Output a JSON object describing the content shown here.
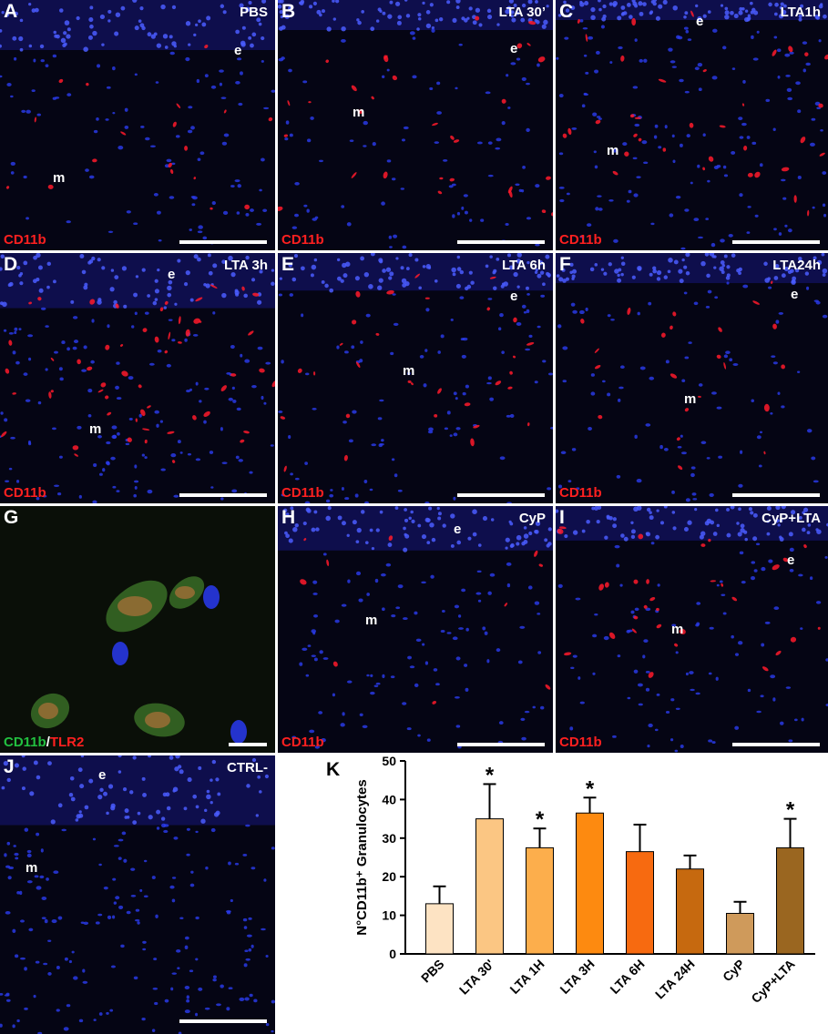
{
  "panels": [
    {
      "letter": "A",
      "condition": "PBS",
      "marker": "CD11b",
      "marker_color": "#ff2020",
      "labels": {
        "e": "e",
        "m": "m"
      }
    },
    {
      "letter": "B",
      "condition": "LTA 30’",
      "marker": "CD11b",
      "marker_color": "#ff2020",
      "labels": {
        "e": "e",
        "m": "m"
      }
    },
    {
      "letter": "C",
      "condition": "LTA1h",
      "marker": "CD11b",
      "marker_color": "#ff2020",
      "labels": {
        "e": "e",
        "m": "m"
      }
    },
    {
      "letter": "D",
      "condition": "LTA 3h",
      "marker": "CD11b",
      "marker_color": "#ff2020",
      "labels": {
        "e": "e",
        "m": "m"
      }
    },
    {
      "letter": "E",
      "condition": "LTA 6h",
      "marker": "CD11b",
      "marker_color": "#ff2020",
      "labels": {
        "e": "e",
        "m": "m"
      }
    },
    {
      "letter": "F",
      "condition": "LTA24h",
      "marker": "CD11b",
      "marker_color": "#ff2020",
      "labels": {
        "e": "e",
        "m": "m"
      }
    },
    {
      "letter": "G",
      "condition": "",
      "marker_parts": [
        "CD11b",
        "/",
        "TLR2"
      ],
      "marker_colors": [
        "#22c040",
        "#ffffff",
        "#ff2020"
      ]
    },
    {
      "letter": "H",
      "condition": "CyP",
      "marker": "CD11b",
      "marker_color": "#ff2020",
      "labels": {
        "e": "e",
        "m": "m"
      }
    },
    {
      "letter": "I",
      "condition": "CyP+LTA",
      "marker": "CD11b",
      "marker_color": "#ff2020",
      "labels": {
        "e": "e",
        "m": "m"
      }
    },
    {
      "letter": "J",
      "condition": "CTRL-",
      "marker": "",
      "labels": {
        "e": "e",
        "m": "m"
      }
    }
  ],
  "chart_letter": "K",
  "chart_data": {
    "type": "bar",
    "title": "",
    "xlabel": "",
    "ylabel": "N°CD11b⁺ Granulocytes",
    "ylim": [
      0,
      50
    ],
    "yticks": [
      0,
      10,
      20,
      30,
      40,
      50
    ],
    "categories": [
      "PBS",
      "LTA 30'",
      "LTA 1H",
      "LTA 3H",
      "LTA 6H",
      "LTA 24H",
      "CyP",
      "CyP+LTA"
    ],
    "values": [
      13,
      35,
      27.5,
      36.5,
      26.5,
      22,
      10.5,
      27.5
    ],
    "errors": [
      4.5,
      9,
      5,
      4,
      7,
      3.5,
      3,
      7.5
    ],
    "significant": [
      false,
      true,
      true,
      true,
      false,
      false,
      false,
      true
    ],
    "significance_marker": "*",
    "colors": [
      "#fde3c3",
      "#fbc683",
      "#fcae4c",
      "#fd8a10",
      "#f76a10",
      "#c6690f",
      "#cf9a5b",
      "#9a6620"
    ]
  }
}
